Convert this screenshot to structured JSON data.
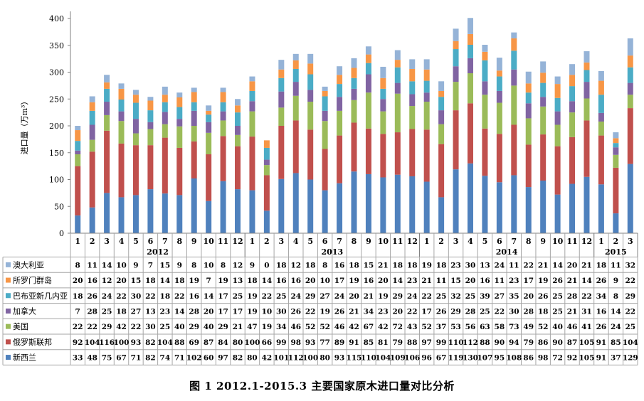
{
  "chart_data": {
    "type": "bar",
    "stacked": true,
    "caption": "图 1      2012.1-2015.3  主要国家原木进口量对比分析",
    "ylabel": "进口量（万m³）",
    "ylim": [
      0,
      400
    ],
    "yticks": [
      "0",
      "50",
      "100",
      "150",
      "200",
      "250",
      "300",
      "350",
      "400"
    ],
    "grid": false,
    "legend": "data-table-below",
    "months": [
      "1",
      "2",
      "3",
      "4",
      "5",
      "6",
      "7",
      "8",
      "9",
      "10",
      "11",
      "12",
      "1",
      "2",
      "3",
      "4",
      "5",
      "6",
      "7",
      "8",
      "9",
      "10",
      "11",
      "12",
      "1",
      "2",
      "3",
      "4",
      "5",
      "6",
      "7",
      "8",
      "9",
      "10",
      "11",
      "12",
      "1",
      "2",
      "3"
    ],
    "years": [
      {
        "label": "2012",
        "count": 12
      },
      {
        "label": "2013",
        "count": 12
      },
      {
        "label": "2014",
        "count": 12
      },
      {
        "label": "2015",
        "count": 3
      }
    ],
    "series": [
      {
        "name": "新西兰",
        "color": "#4f81bd",
        "values": [
          33,
          48,
          75,
          67,
          71,
          82,
          74,
          71,
          102,
          60,
          97,
          82,
          80,
          42,
          101,
          112,
          100,
          80,
          93,
          115,
          110,
          104,
          109,
          106,
          96,
          67,
          119,
          130,
          107,
          95,
          108,
          86,
          98,
          72,
          92,
          105,
          91,
          37,
          129
        ]
      },
      {
        "name": "俄罗斯联邦",
        "color": "#c0504d",
        "values": [
          92,
          104,
          116,
          100,
          93,
          82,
          104,
          88,
          69,
          87,
          84,
          80,
          100,
          66,
          99,
          98,
          93,
          77,
          89,
          91,
          85,
          81,
          79,
          88,
          97,
          99,
          110,
          112,
          88,
          90,
          94,
          79,
          86,
          90,
          87,
          105,
          91,
          85,
          104
        ]
      },
      {
        "name": "美国",
        "color": "#9bbb59",
        "values": [
          22,
          22,
          29,
          42,
          22,
          30,
          25,
          40,
          29,
          40,
          29,
          21,
          47,
          19,
          34,
          46,
          52,
          52,
          46,
          42,
          67,
          42,
          72,
          43,
          52,
          37,
          53,
          56,
          63,
          58,
          73,
          49,
          52,
          40,
          46,
          41,
          26,
          24,
          25
        ]
      },
      {
        "name": "加拿大",
        "color": "#8064a2",
        "values": [
          7,
          28,
          25,
          18,
          27,
          13,
          23,
          14,
          28,
          20,
          17,
          17,
          19,
          10,
          30,
          26,
          22,
          19,
          26,
          21,
          34,
          23,
          20,
          22,
          17,
          26,
          29,
          28,
          25,
          22,
          30,
          28,
          18,
          25,
          21,
          31,
          16,
          14,
          22
        ]
      },
      {
        "name": "巴布亚新几内亚",
        "color": "#4bacc6",
        "values": [
          18,
          26,
          24,
          22,
          30,
          22,
          18,
          22,
          16,
          14,
          17,
          25,
          19,
          22,
          25,
          24,
          29,
          27,
          24,
          20,
          21,
          19,
          29,
          24,
          22,
          25,
          32,
          25,
          39,
          27,
          35,
          20,
          26,
          25,
          28,
          22,
          34,
          8,
          29
        ]
      },
      {
        "name": "所罗门群岛",
        "color": "#f79646",
        "values": [
          20,
          16,
          12,
          20,
          15,
          18,
          14,
          18,
          19,
          7,
          19,
          13,
          18,
          14,
          16,
          16,
          20,
          10,
          17,
          19,
          16,
          20,
          14,
          23,
          21,
          11,
          15,
          20,
          16,
          11,
          23,
          17,
          19,
          26,
          21,
          14,
          26,
          9,
          22
        ]
      },
      {
        "name": "澳大利亚",
        "color": "#95b3d7",
        "values": [
          8,
          11,
          14,
          10,
          9,
          7,
          15,
          9,
          8,
          10,
          8,
          12,
          9,
          0,
          18,
          12,
          18,
          8,
          16,
          18,
          15,
          21,
          18,
          18,
          19,
          18,
          23,
          30,
          13,
          24,
          11,
          22,
          21,
          14,
          20,
          21,
          18,
          11,
          32
        ]
      }
    ]
  }
}
